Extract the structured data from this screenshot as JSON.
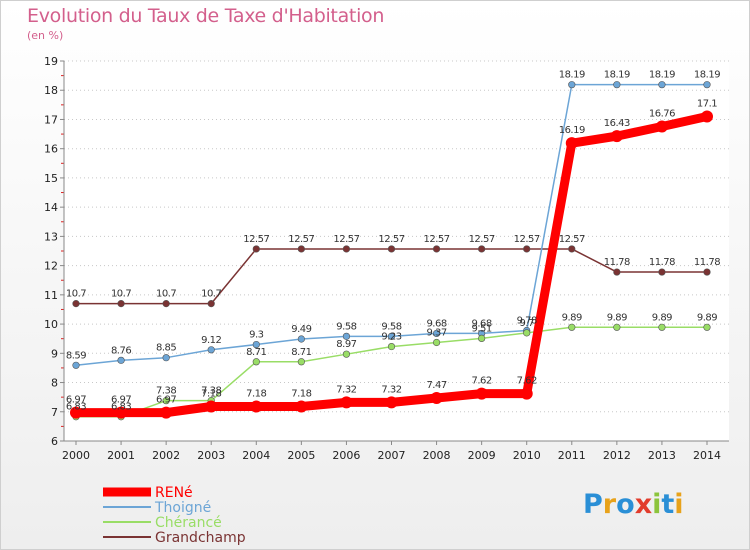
{
  "header": {
    "title": "Evolution du Taux de Taxe d'Habitation",
    "unit": "(en %)"
  },
  "logo": {
    "text": "Proxiti",
    "colors": [
      "#2a8fd6",
      "#e8a21a",
      "#2a8fd6",
      "#e23c2c",
      "#8cc43c",
      "#2a8fd6",
      "#e8a21a"
    ]
  },
  "chart_data": {
    "type": "line",
    "title": "Evolution du Taux de Taxe d'Habitation",
    "ylabel": "(en %)",
    "xlabel": "",
    "x": [
      "2000",
      "2001",
      "2002",
      "2003",
      "2004",
      "2005",
      "2006",
      "2007",
      "2008",
      "2009",
      "2010",
      "2011",
      "2012",
      "2013",
      "2014"
    ],
    "ylim": [
      6,
      19
    ],
    "yticks": [
      6,
      7,
      8,
      9,
      10,
      11,
      12,
      13,
      14,
      15,
      16,
      17,
      18,
      19
    ],
    "grid": "horizontal-dotted",
    "legend_position": "bottom-left",
    "series": [
      {
        "name": "RENé",
        "color": "#ff0000",
        "values": [
          6.97,
          6.97,
          6.97,
          7.18,
          7.18,
          7.18,
          7.32,
          7.32,
          7.47,
          7.62,
          7.62,
          16.19,
          16.43,
          16.76,
          17.1
        ],
        "labels": [
          "6.97",
          "6.97",
          "6.97",
          "7.18",
          "7.18",
          "7.18",
          "7.32",
          "7.32",
          "7.47",
          "7.62",
          "7.62",
          "16.19",
          "16.43",
          "16.76",
          "17.1"
        ]
      },
      {
        "name": "Thoigné",
        "color": "#6ca5d6",
        "values": [
          8.59,
          8.76,
          8.85,
          9.12,
          9.3,
          9.49,
          9.58,
          9.58,
          9.68,
          9.68,
          9.78,
          18.19,
          18.19,
          18.19,
          18.19
        ],
        "labels": [
          "8.59",
          "8.76",
          "8.85",
          "9.12",
          "9.3",
          "9.49",
          "9.58",
          "9.58",
          "9.68",
          "9.68",
          "9.78",
          "18.19",
          "18.19",
          "18.19",
          "18.19"
        ]
      },
      {
        "name": "Chérancé",
        "color": "#99dd66",
        "values": [
          6.83,
          6.83,
          7.38,
          7.38,
          8.71,
          8.71,
          8.97,
          9.23,
          9.37,
          9.51,
          9.7,
          9.89,
          9.89,
          9.89,
          9.89
        ],
        "labels": [
          "6.83",
          "6.83",
          "7.38",
          "7.38",
          "8.71",
          "8.71",
          "8.97",
          "9.23",
          "9.37",
          "9.51",
          "9.7",
          "9.89",
          "9.89",
          "9.89",
          "9.89"
        ]
      },
      {
        "name": "Grandchamp",
        "color": "#7a3333",
        "values": [
          10.7,
          10.7,
          10.7,
          10.7,
          12.57,
          12.57,
          12.57,
          12.57,
          12.57,
          12.57,
          12.57,
          12.57,
          11.78,
          11.78,
          11.78
        ],
        "labels": [
          "10.7",
          "10.7",
          "10.7",
          "10.7",
          "12.57",
          "12.57",
          "12.57",
          "12.57",
          "12.57",
          "12.57",
          "12.57",
          "12.57",
          "11.78",
          "11.78",
          "11.78"
        ]
      }
    ]
  }
}
